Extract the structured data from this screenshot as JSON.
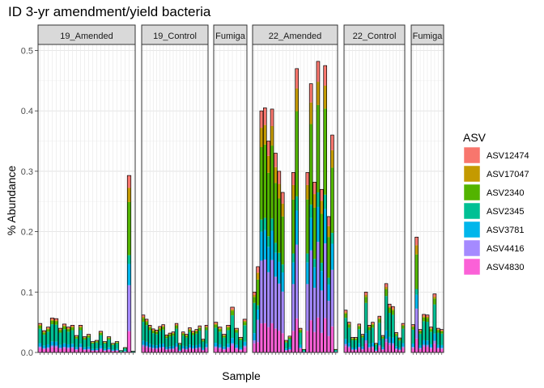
{
  "chart_data": {
    "type": "bar",
    "stacked": true,
    "title": "ID 3-yr amendment/yield bacteria",
    "xlabel": "Sample",
    "ylabel": "% Abundance",
    "ylim": [
      0,
      0.51
    ],
    "yticks": [
      0.0,
      0.1,
      0.2,
      0.3,
      0.4,
      0.5
    ],
    "ytick_labels": [
      "0.0",
      "0.1",
      "0.2",
      "0.3",
      "0.4",
      "0.5"
    ],
    "grid": true,
    "legend": {
      "title": "ASV",
      "position": "right",
      "entries": [
        "ASV12474",
        "ASV17047",
        "ASV2340",
        "ASV2345",
        "ASV3781",
        "ASV4416",
        "ASV4830"
      ]
    },
    "series_colors": {
      "ASV12474": "#F8766D",
      "ASV17047": "#C49A00",
      "ASV2340": "#53B400",
      "ASV2345": "#00C094",
      "ASV3781": "#00B6EB",
      "ASV4416": "#A58AFF",
      "ASV4830": "#FB61D7"
    },
    "panels": [
      {
        "label": "19_Amended",
        "totals": [
          0.048,
          0.036,
          0.042,
          0.057,
          0.056,
          0.04,
          0.047,
          0.042,
          0.045,
          0.028,
          0.045,
          0.026,
          0.03,
          0.018,
          0.02,
          0.035,
          0.018,
          0.026,
          0.015,
          0.018,
          0.003,
          0.008,
          0.293,
          0.002
        ]
      },
      {
        "label": "19_Control",
        "totals": [
          0.062,
          0.055,
          0.045,
          0.039,
          0.037,
          0.043,
          0.046,
          0.029,
          0.032,
          0.034,
          0.048,
          0.015,
          0.034,
          0.03,
          0.041,
          0.035,
          0.038,
          0.044,
          0.022,
          0.045
        ]
      },
      {
        "label": "Fumiga",
        "totals": [
          0.05,
          0.042,
          0.03,
          0.045,
          0.075,
          0.04,
          0.025,
          0.055
        ]
      },
      {
        "label": "22_Amended",
        "totals": [
          0.1,
          0.142,
          0.4,
          0.405,
          0.35,
          0.403,
          0.33,
          0.3,
          0.265,
          0.02,
          0.027,
          0.298,
          0.47,
          0.04,
          0.005,
          0.298,
          0.445,
          0.282,
          0.482,
          0.27,
          0.475,
          0.225,
          0.36,
          0.005
        ]
      },
      {
        "label": "22_Control",
        "totals": [
          0.07,
          0.05,
          0.025,
          0.025,
          0.047,
          0.03,
          0.1,
          0.045,
          0.05,
          0.015,
          0.06,
          0.028,
          0.114,
          0.08,
          0.076,
          0.033,
          0.024,
          0.048
        ]
      },
      {
        "label": "Fumiga",
        "totals": [
          0.046,
          0.191,
          0.038,
          0.063,
          0.062,
          0.042,
          0.097,
          0.04,
          0.038
        ]
      }
    ]
  }
}
